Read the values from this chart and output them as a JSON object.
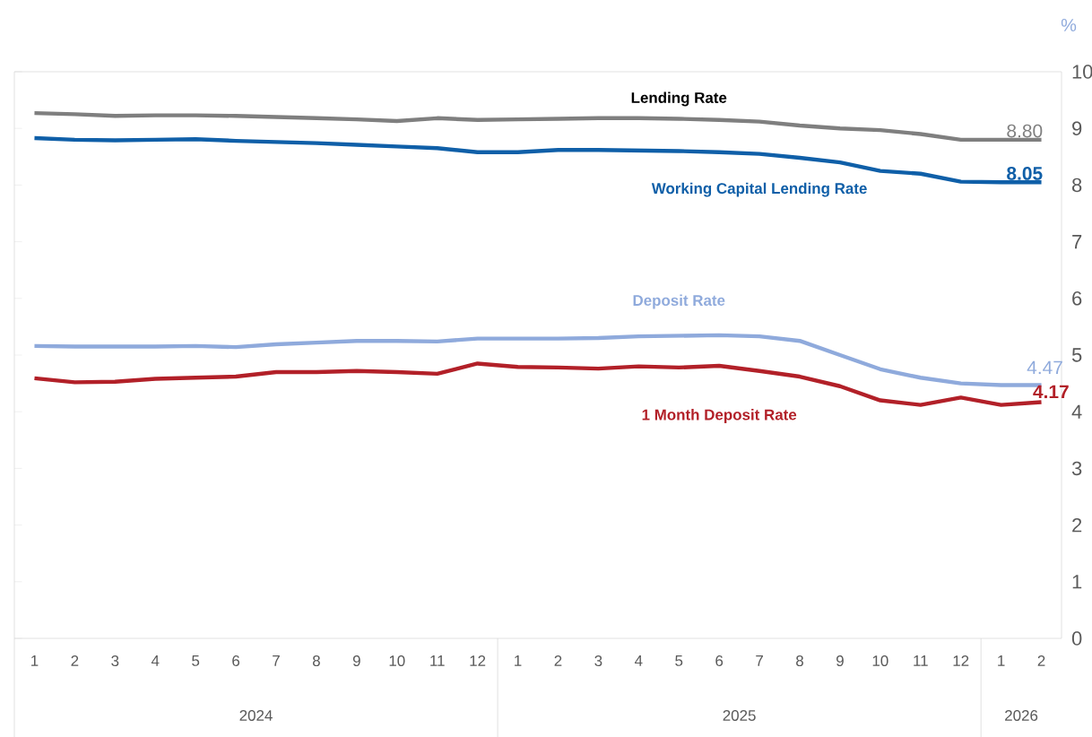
{
  "chart_data": {
    "type": "line",
    "ylabel": "%",
    "ylim": [
      0,
      10
    ],
    "yticks": [
      0,
      1,
      2,
      3,
      4,
      5,
      6,
      7,
      8,
      9,
      10
    ],
    "grid": false,
    "marker": "none",
    "line_style": "solid",
    "categories": [
      "1",
      "2",
      "3",
      "4",
      "5",
      "6",
      "7",
      "8",
      "9",
      "10",
      "11",
      "12",
      "1",
      "2",
      "3",
      "4",
      "5",
      "6",
      "7",
      "8",
      "9",
      "10",
      "11",
      "12",
      "1",
      "2"
    ],
    "annotations": [
      "2024",
      "2025",
      "2026"
    ],
    "series": [
      {
        "name": "Lending Rate",
        "color": "#7f7f7f",
        "values": [
          9.27,
          9.25,
          9.22,
          9.23,
          9.23,
          9.22,
          9.2,
          9.18,
          9.16,
          9.13,
          9.18,
          9.15,
          9.16,
          9.17,
          9.18,
          9.18,
          9.17,
          9.15,
          9.12,
          9.05,
          9.0,
          8.97,
          8.9,
          8.8,
          8.8,
          8.8
        ],
        "value_labels": [
          null,
          null,
          null,
          null,
          null,
          null,
          null,
          null,
          null,
          null,
          null,
          null,
          null,
          null,
          null,
          null,
          null,
          null,
          null,
          null,
          null,
          null,
          null,
          null,
          null,
          "8.80"
        ]
      },
      {
        "name": "Working Capital Lending Rate",
        "color": "#0f5fa8",
        "values": [
          8.83,
          8.8,
          8.79,
          8.8,
          8.81,
          8.78,
          8.76,
          8.74,
          8.71,
          8.68,
          8.65,
          8.58,
          8.58,
          8.62,
          8.62,
          8.61,
          8.6,
          8.58,
          8.55,
          8.48,
          8.4,
          8.25,
          8.2,
          8.06,
          8.05,
          8.05
        ],
        "value_labels": [
          null,
          null,
          null,
          null,
          null,
          null,
          null,
          null,
          null,
          null,
          null,
          null,
          null,
          null,
          null,
          null,
          null,
          null,
          null,
          null,
          null,
          null,
          null,
          null,
          null,
          "8.05"
        ]
      },
      {
        "name": "Deposit Rate",
        "color": "#8faadc",
        "values": [
          5.16,
          5.15,
          5.15,
          5.15,
          5.16,
          5.14,
          5.19,
          5.22,
          5.25,
          5.25,
          5.24,
          5.29,
          5.29,
          5.29,
          5.3,
          5.33,
          5.34,
          5.35,
          5.33,
          5.25,
          5.0,
          4.75,
          4.6,
          4.5,
          4.47,
          4.47
        ],
        "value_labels": [
          null,
          null,
          null,
          null,
          null,
          null,
          null,
          null,
          null,
          null,
          null,
          null,
          null,
          null,
          null,
          null,
          null,
          null,
          null,
          null,
          null,
          null,
          null,
          null,
          null,
          "4.47"
        ]
      },
      {
        "name": "1 Month Deposit Rate",
        "color": "#b22028",
        "values": [
          4.59,
          4.52,
          4.53,
          4.58,
          4.6,
          4.62,
          4.7,
          4.7,
          4.72,
          4.7,
          4.67,
          4.85,
          4.79,
          4.78,
          4.76,
          4.8,
          4.78,
          4.81,
          4.72,
          4.62,
          4.45,
          4.2,
          4.12,
          4.25,
          4.12,
          4.17
        ],
        "value_labels": [
          null,
          null,
          null,
          null,
          null,
          null,
          null,
          null,
          null,
          null,
          null,
          null,
          null,
          null,
          null,
          null,
          null,
          null,
          null,
          null,
          null,
          null,
          null,
          null,
          null,
          "4.17"
        ]
      }
    ]
  }
}
